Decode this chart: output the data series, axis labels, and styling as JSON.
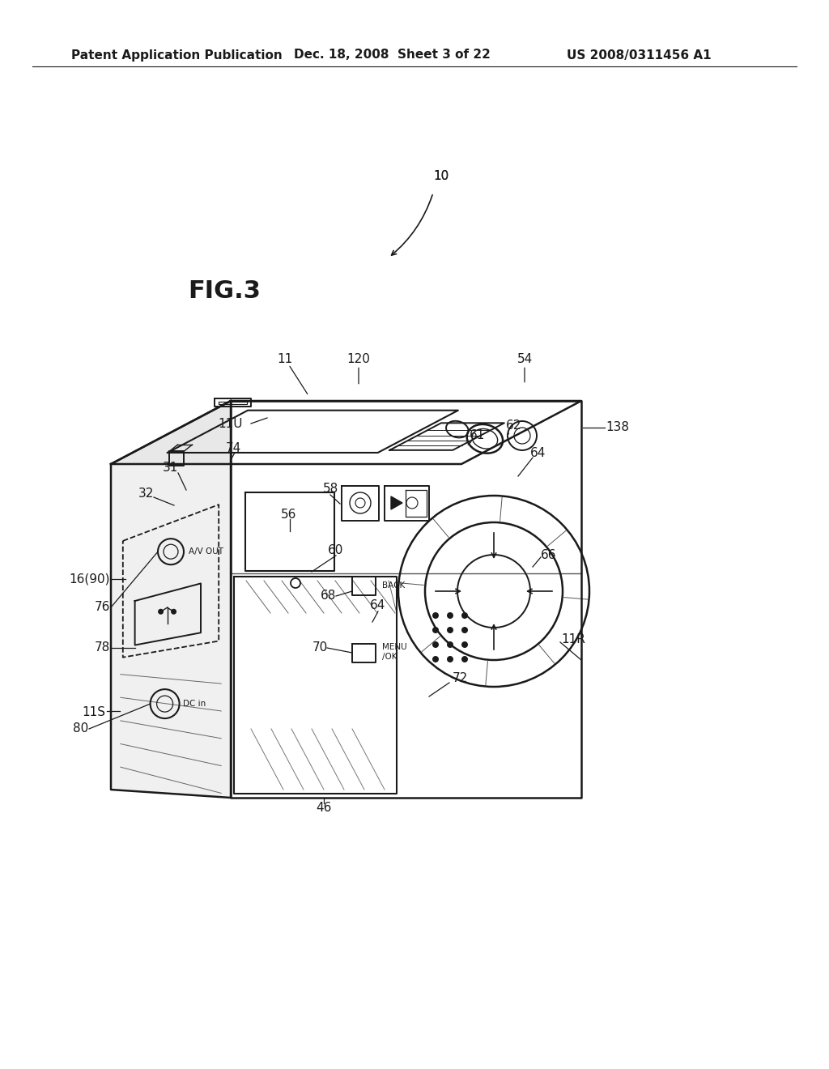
{
  "bg_color": "#ffffff",
  "line_color": "#1a1a1a",
  "header_left": "Patent Application Publication",
  "header_mid": "Dec. 18, 2008  Sheet 3 of 22",
  "header_right": "US 2008/0311456 A1",
  "fig_label": "FIG.3"
}
